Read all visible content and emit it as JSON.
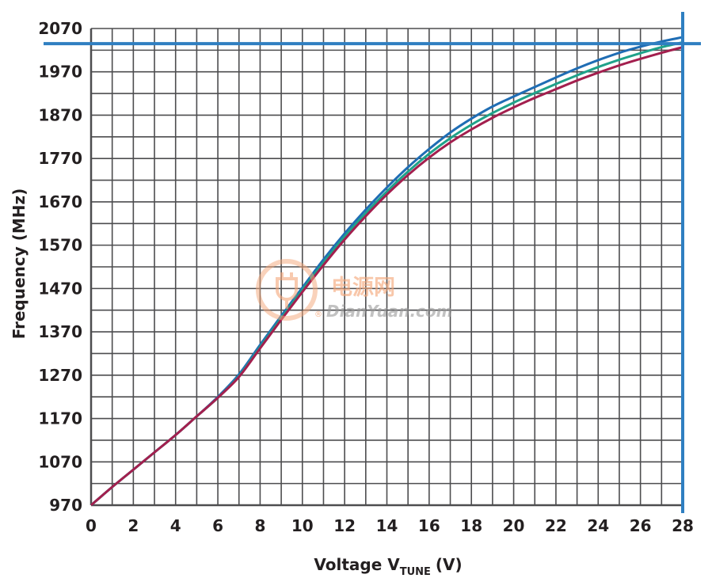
{
  "chart_data": {
    "type": "line",
    "xlabel": "Voltage V",
    "xlabel_subscript": "TUNE",
    "xlabel_unit": "(V)",
    "ylabel": "Frequency (MHz)",
    "xlim": [
      0,
      28
    ],
    "ylim": [
      970,
      2070
    ],
    "x_ticks": [
      "0",
      "2",
      "4",
      "6",
      "8",
      "10",
      "12",
      "14",
      "16",
      "18",
      "20",
      "22",
      "24",
      "26",
      "28"
    ],
    "y_ticks": [
      "970",
      "1070",
      "1170",
      "1270",
      "1370",
      "1470",
      "1570",
      "1670",
      "1770",
      "1870",
      "1970",
      "2070"
    ],
    "grid": true,
    "reference_lines": {
      "horizontal_y": 2035,
      "vertical_x": 28,
      "color": "#2f7fc1"
    },
    "x": [
      0,
      1,
      2,
      3,
      4,
      5,
      6,
      7,
      8,
      9,
      10,
      11,
      12,
      13,
      14,
      15,
      16,
      17,
      18,
      19,
      20,
      21,
      22,
      23,
      24,
      25,
      26,
      27,
      28
    ],
    "series": [
      {
        "color": "#1f6db4",
        "values": [
          970,
          1012,
          1052,
          1092,
          1132,
          1175,
          1220,
          1272,
          1340,
          1407,
          1472,
          1537,
          1597,
          1652,
          1703,
          1750,
          1792,
          1830,
          1862,
          1890,
          1913,
          1935,
          1957,
          1978,
          1997,
          2014,
          2028,
          2040,
          2050
        ]
      },
      {
        "color": "#1fa28a",
        "values": [
          970,
          1012,
          1052,
          1092,
          1132,
          1175,
          1218,
          1268,
          1335,
          1402,
          1467,
          1530,
          1590,
          1644,
          1694,
          1740,
          1781,
          1817,
          1848,
          1875,
          1899,
          1921,
          1942,
          1962,
          1981,
          1998,
          2013,
          2027,
          2038
        ]
      },
      {
        "color": "#a31f4e",
        "values": [
          970,
          1012,
          1052,
          1092,
          1132,
          1175,
          1218,
          1266,
          1332,
          1398,
          1462,
          1524,
          1583,
          1637,
          1687,
          1732,
          1772,
          1807,
          1837,
          1864,
          1888,
          1910,
          1930,
          1950,
          1968,
          1985,
          2000,
          2014,
          2027
        ]
      }
    ]
  },
  "watermark": {
    "cn": "电源网",
    "en": "DianYuan.com",
    "reg": "®"
  }
}
